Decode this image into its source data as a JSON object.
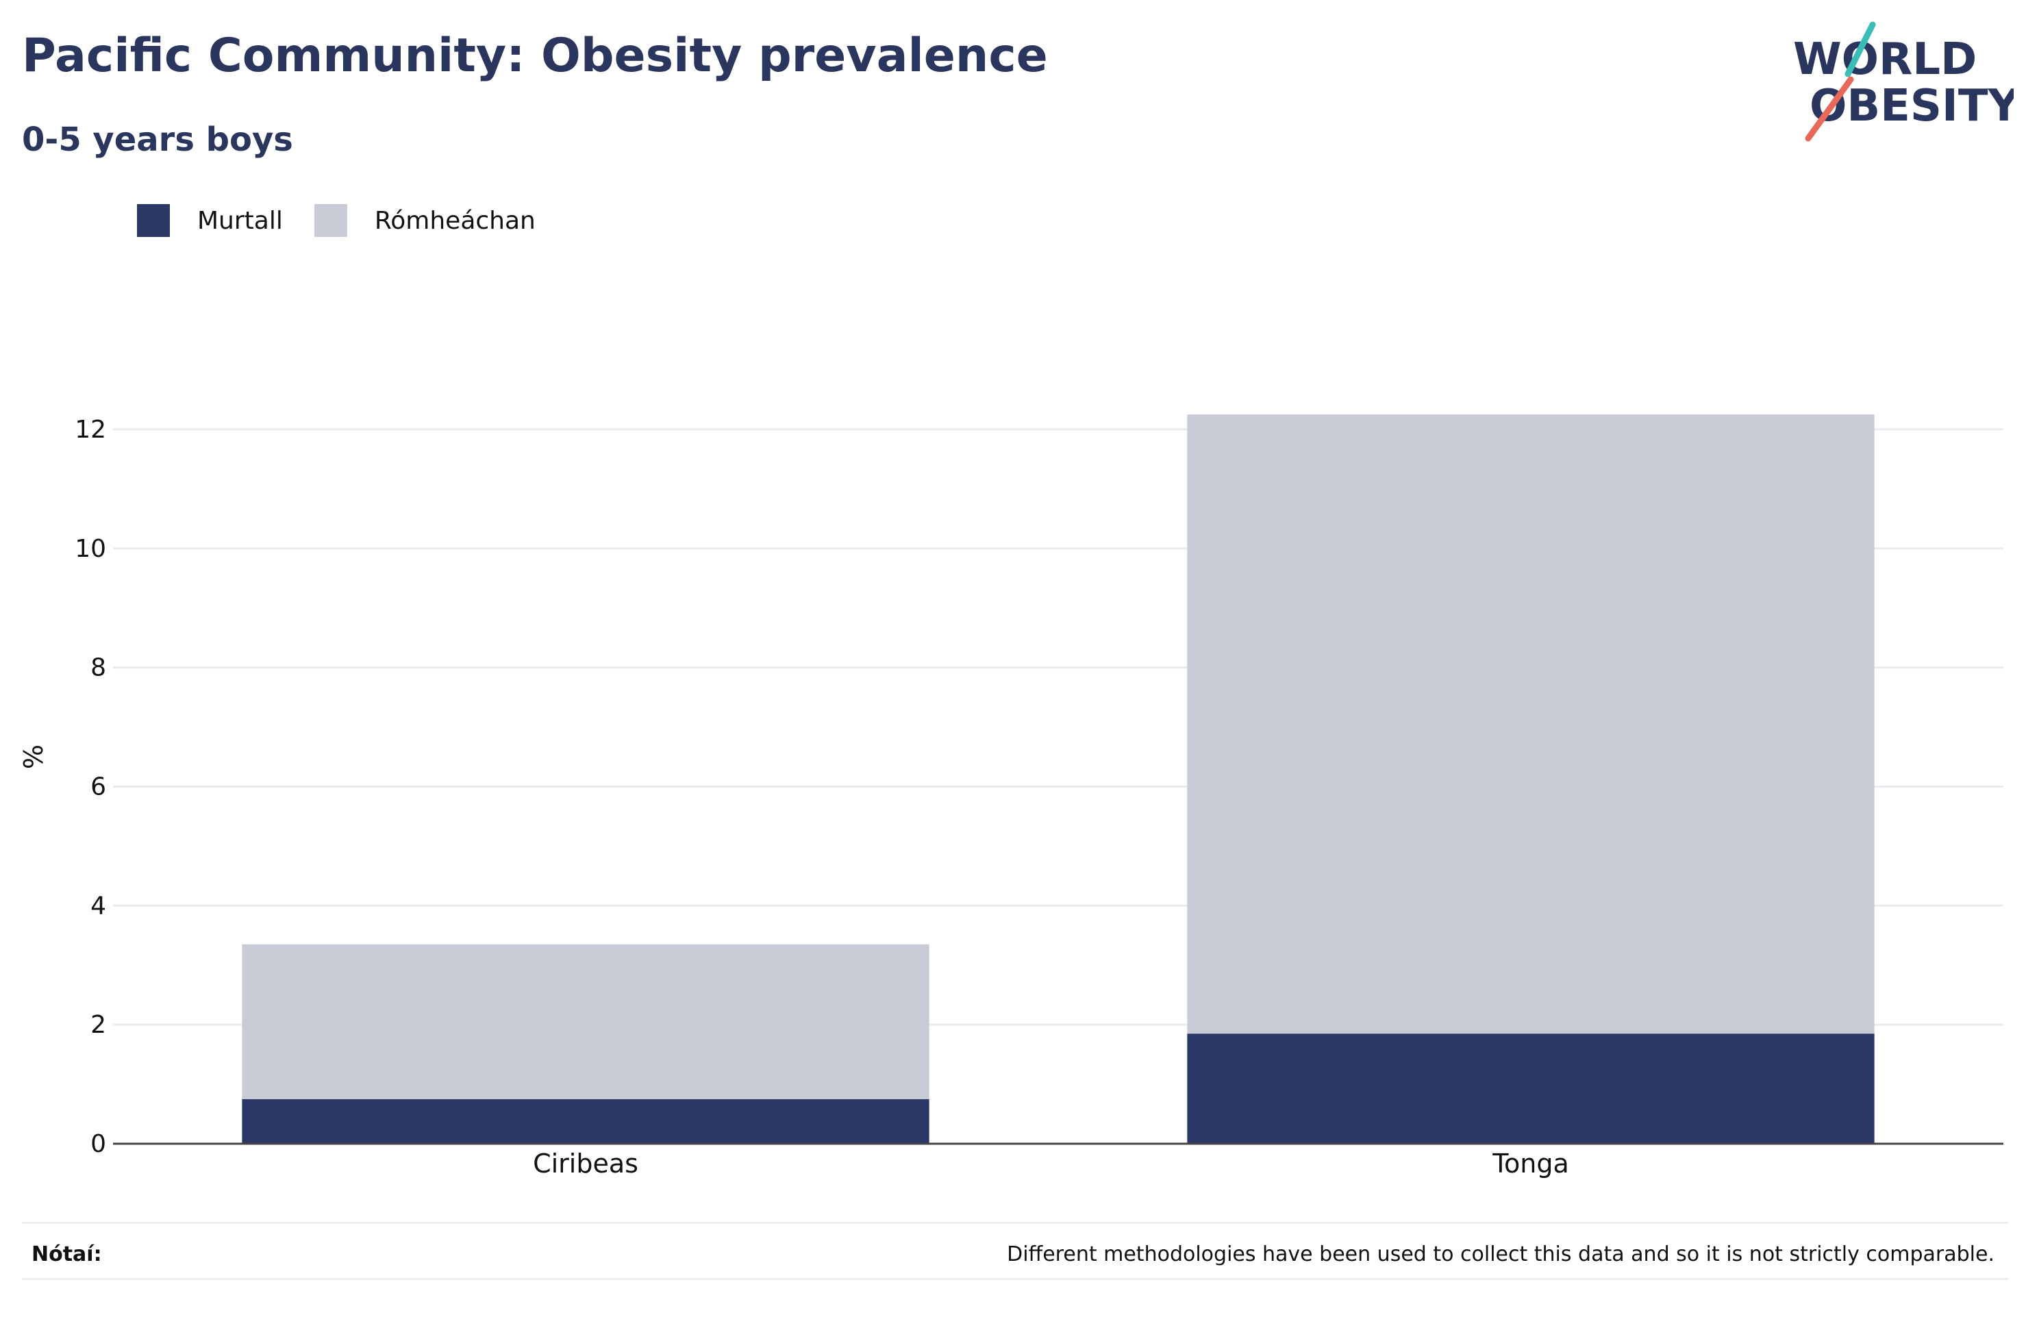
{
  "header": {
    "title": "Pacific Community: Obesity prevalence",
    "subtitle": "0-5 years boys"
  },
  "logo": {
    "line1": "WORLD",
    "line2": "OBESITY",
    "colors": {
      "text": "#2b365f",
      "accent_teal": "#3bbdb7",
      "accent_coral": "#e8695a"
    }
  },
  "legend": {
    "items": [
      {
        "label": "Murtall",
        "color": "#2b3766"
      },
      {
        "label": "Rómheáchan",
        "color": "#c9cbd6"
      }
    ]
  },
  "chart_data": {
    "type": "bar",
    "stacked": true,
    "categories": [
      "Ciribeas",
      "Tonga"
    ],
    "series": [
      {
        "name": "Murtall",
        "values": [
          0.75,
          1.85
        ],
        "color": "#2b3766"
      },
      {
        "name": "Rómheáchan",
        "values": [
          2.6,
          10.4
        ],
        "color": "#c9cbd6"
      }
    ],
    "ylabel": "%",
    "ylim": [
      0,
      13
    ],
    "yticks": [
      0,
      2,
      4,
      6,
      8,
      10,
      12
    ],
    "grid": true,
    "legend_position": "top-left"
  },
  "footer": {
    "note_label": "Nótaí:",
    "note_text": "Different methodologies have been used to collect this data and so it is not strictly comparable."
  }
}
